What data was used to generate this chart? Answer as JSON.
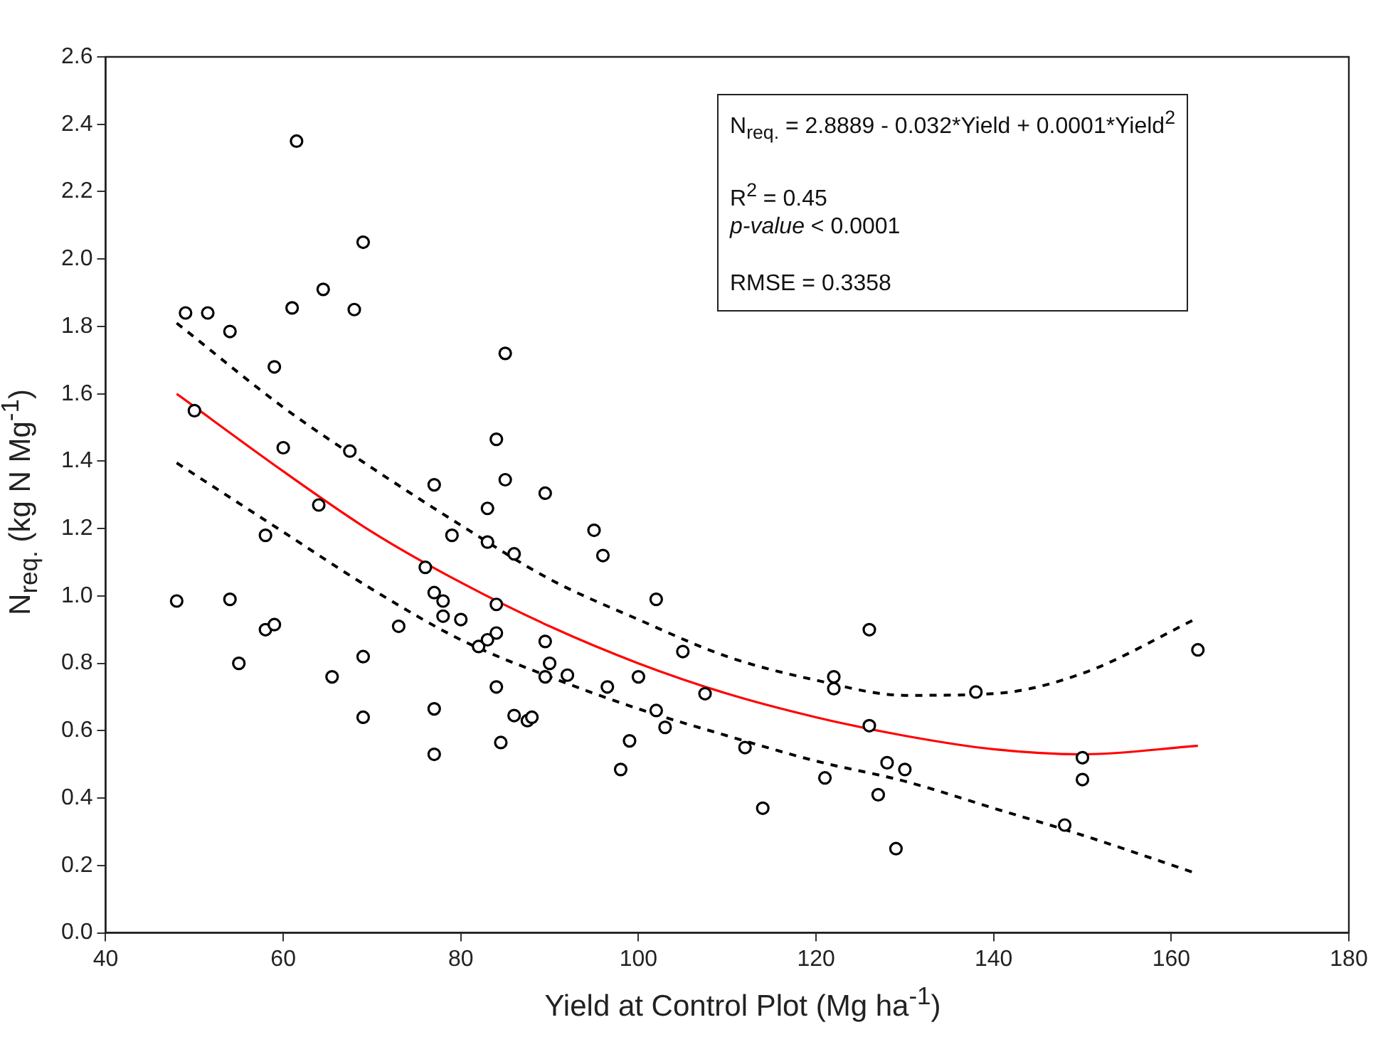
{
  "chart_data": {
    "type": "scatter",
    "xlabel": "Yield at Control Plot (Mg ha$^{-1}$)",
    "ylabel": "N$_{req.}$ (kg N Mg$^{-1}$)",
    "annotations": [
      "N$_{req.}$ = 2.8889 - 0.032*Yield + 0.0001*Yield$^{2}$",
      "R$^{2}$ = 0.45",
      "p-value < 0.0001",
      "RMSE = 0.3358"
    ],
    "xlim": [
      40,
      180
    ],
    "xticks": [
      40,
      60,
      80,
      100,
      120,
      140,
      160,
      180
    ],
    "ylim": [
      0,
      2.6
    ],
    "yticks": [
      {
        "value": 0,
        "label": "0.0"
      },
      0.2,
      0.4,
      0.6,
      0.8,
      {
        "value": 1,
        "label": "1.0"
      },
      1.2,
      1.4,
      1.6,
      1.8,
      {
        "value": 2,
        "label": "2.0"
      },
      2.2,
      2.4,
      2.6
    ],
    "grid": false,
    "legend": false,
    "series": [
      {
        "color": "#000000",
        "marker": "circle",
        "x": [
          48,
          49,
          50,
          51.5,
          54,
          54,
          55,
          58,
          58,
          59,
          59,
          60,
          61,
          61.5,
          64,
          64.5,
          65.5,
          67.5,
          68,
          69,
          69,
          69,
          73,
          76,
          77,
          77,
          77,
          77,
          78,
          78,
          79,
          80,
          82,
          83,
          83,
          83,
          84,
          84,
          84,
          84,
          84.5,
          85,
          85,
          86,
          86,
          87.5,
          88,
          89.5,
          89.5,
          90,
          89.5,
          92,
          95,
          96,
          96.5,
          98,
          99,
          100,
          102,
          102,
          103,
          105,
          107.5,
          112,
          114,
          121,
          122,
          122,
          126,
          126,
          127,
          128,
          129,
          130,
          138,
          148,
          150,
          150,
          163
        ],
        "values": [
          0.985,
          1.84,
          1.55,
          1.84,
          1.785,
          0.99,
          0.8,
          1.18,
          0.9,
          0.915,
          1.68,
          1.44,
          1.855,
          2.35,
          1.27,
          1.91,
          0.76,
          1.43,
          1.85,
          2.05,
          0.82,
          0.64,
          0.91,
          1.085,
          1.33,
          1.01,
          0.665,
          0.53,
          0.985,
          0.94,
          1.18,
          0.93,
          0.85,
          1.26,
          1.16,
          0.87,
          1.465,
          0.975,
          0.89,
          0.73,
          0.565,
          1.72,
          1.345,
          1.125,
          0.645,
          0.63,
          0.64,
          1.305,
          0.865,
          0.8,
          0.76,
          0.765,
          1.195,
          1.12,
          0.73,
          0.485,
          0.57,
          0.76,
          0.99,
          0.66,
          0.61,
          0.835,
          0.71,
          0.55,
          0.37,
          0.46,
          0.76,
          0.725,
          0.9,
          0.615,
          0.41,
          0.505,
          0.25,
          0.485,
          0.715,
          0.32,
          0.52,
          0.455,
          0.84
        ]
      },
      {
        "type": "line",
        "color": "#ff0000",
        "line_style": "solid",
        "x": [
          48,
          60,
          70,
          80,
          90,
          100,
          110,
          120,
          130,
          140,
          150,
          163
        ],
        "values": [
          1.6,
          1.37,
          1.19,
          1.04,
          0.91,
          0.8,
          0.71,
          0.64,
          0.585,
          0.545,
          0.53,
          0.555
        ]
      },
      {
        "type": "line",
        "color": "#000000",
        "line_style": "dashed",
        "x": [
          48,
          60,
          70,
          80,
          90,
          100,
          110,
          120,
          130,
          140,
          150,
          163
        ],
        "values": [
          1.81,
          1.56,
          1.38,
          1.21,
          1.05,
          0.93,
          0.82,
          0.75,
          0.705,
          0.71,
          0.77,
          0.935
        ]
      },
      {
        "type": "line",
        "color": "#000000",
        "line_style": "dashed",
        "x": [
          48,
          60,
          70,
          80,
          90,
          100,
          110,
          120,
          130,
          140,
          150,
          163
        ],
        "values": [
          1.395,
          1.19,
          1.02,
          0.87,
          0.76,
          0.665,
          0.585,
          0.51,
          0.45,
          0.37,
          0.29,
          0.175
        ]
      }
    ]
  }
}
